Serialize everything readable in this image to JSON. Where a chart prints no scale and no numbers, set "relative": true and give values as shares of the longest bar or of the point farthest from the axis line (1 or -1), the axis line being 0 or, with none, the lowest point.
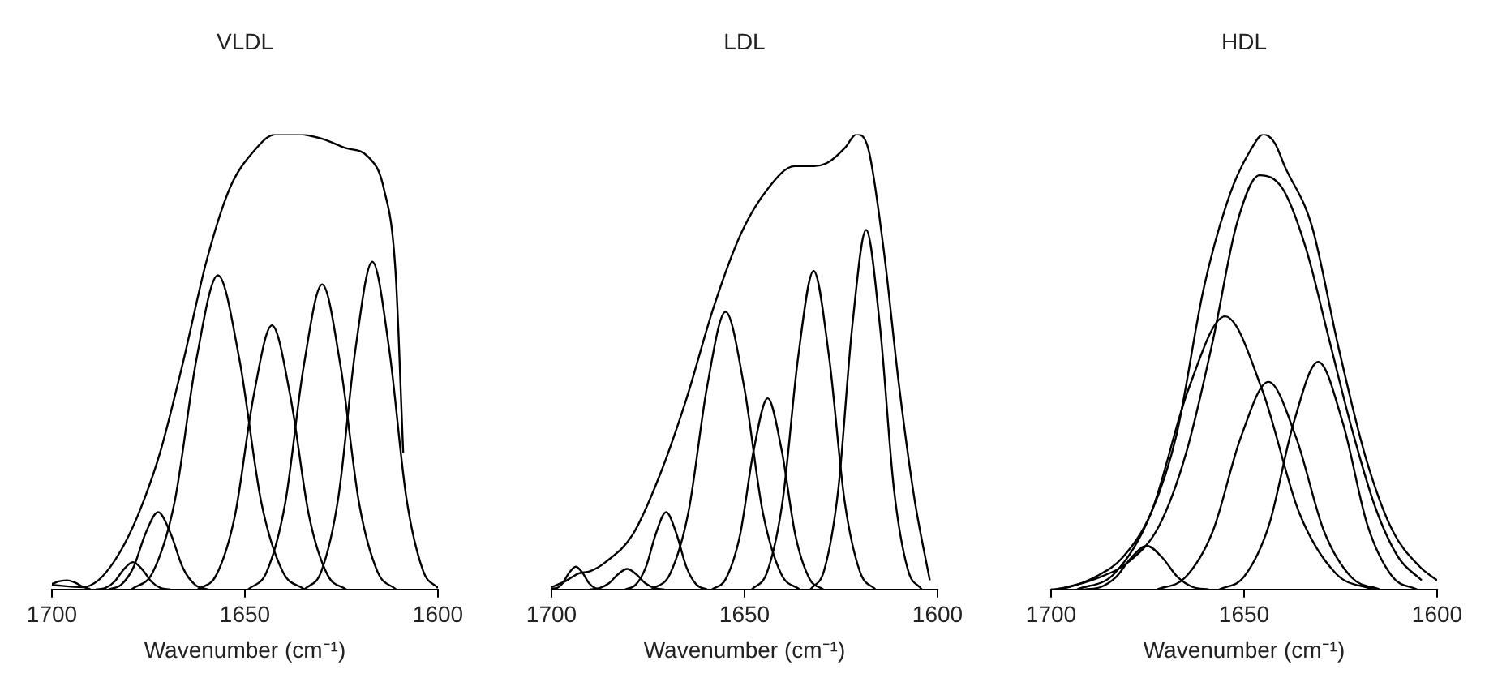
{
  "chart_data": [
    {
      "type": "line",
      "title": "VLDL",
      "xlabel": "Wavenumber (cm⁻¹)",
      "xlim": [
        1700,
        1600
      ],
      "xticks": [
        1700,
        1650,
        1600
      ],
      "relative": true,
      "tick_labels": "x",
      "marker": "none",
      "line_style": "solid",
      "series": [
        {
          "color": "#000000",
          "x": [
            1700,
            1692,
            1688,
            1684,
            1680,
            1676,
            1672,
            1666,
            1660,
            1654,
            1648,
            1642,
            1636,
            1630,
            1624,
            1618,
            1614,
            1611,
            1609
          ],
          "values": [
            0.01,
            0.005,
            0.02,
            0.06,
            0.12,
            0.2,
            0.3,
            0.5,
            0.72,
            0.88,
            0.96,
            1,
            1,
            0.99,
            0.97,
            0.95,
            0.88,
            0.7,
            0.3
          ]
        },
        {
          "color": "#000000",
          "x": [
            1700,
            1698,
            1696,
            1694,
            1692,
            1690
          ],
          "values": [
            0.012,
            0.018,
            0.02,
            0.015,
            0.006,
            0
          ]
        },
        {
          "color": "#000000",
          "x": [
            1688.6,
            1686.2,
            1683.8,
            1681.4,
            1679,
            1676.6,
            1674.2,
            1671.8,
            1669.4
          ],
          "values": [
            0,
            0.003,
            0.017,
            0.044,
            0.06,
            0.044,
            0.017,
            0.003,
            0
          ]
        },
        {
          "color": "#000000",
          "x": [
            1685.3,
            1682.1,
            1678.9,
            1675.7,
            1672.5,
            1669.3,
            1666.1,
            1662.9,
            1659.7
          ],
          "values": [
            0,
            0.01,
            0.048,
            0.124,
            0.17,
            0.124,
            0.048,
            0.01,
            0
          ]
        },
        {
          "color": "#000000",
          "x": [
            1679.4,
            1673.8,
            1668.2,
            1662.6,
            1657,
            1651.4,
            1645.8,
            1640.2,
            1634.6
          ],
          "values": [
            0,
            0.039,
            0.193,
            0.504,
            0.69,
            0.504,
            0.193,
            0.039,
            0
          ]
        },
        {
          "color": "#000000",
          "x": [
            1662.2,
            1657.4,
            1652.6,
            1647.8,
            1643,
            1638.2,
            1633.4,
            1628.6,
            1623.8
          ],
          "values": [
            0,
            0.032,
            0.162,
            0.423,
            0.58,
            0.423,
            0.162,
            0.032,
            0
          ]
        },
        {
          "color": "#000000",
          "x": [
            1649.2,
            1644.4,
            1639.6,
            1634.8,
            1630,
            1625.2,
            1620.4,
            1615.6,
            1610.8
          ],
          "values": [
            0,
            0.038,
            0.188,
            0.489,
            0.67,
            0.489,
            0.188,
            0.038,
            0
          ]
        },
        {
          "color": "#000000",
          "x": [
            1634.6,
            1630.2,
            1625.8,
            1621.4,
            1617,
            1612.6,
            1608.2,
            1603.8,
            1600
          ],
          "values": [
            0,
            0.04,
            0.202,
            0.526,
            0.72,
            0.526,
            0.202,
            0.04,
            0.003
          ]
        }
      ]
    },
    {
      "type": "line",
      "title": "LDL",
      "xlabel": "Wavenumber (cm⁻¹)",
      "xlim": [
        1700,
        1600
      ],
      "xticks": [
        1700,
        1650,
        1600
      ],
      "relative": true,
      "tick_labels": "x",
      "marker": "none",
      "line_style": "solid",
      "series": [
        {
          "color": "#000000",
          "x": [
            1700,
            1696,
            1693,
            1690,
            1686,
            1679,
            1672,
            1665,
            1658,
            1651,
            1644,
            1637,
            1632,
            1628,
            1624,
            1621,
            1618,
            1614,
            1610,
            1606,
            1602
          ],
          "values": [
            0.005,
            0.02,
            0.035,
            0.04,
            0.06,
            0.12,
            0.25,
            0.42,
            0.62,
            0.78,
            0.88,
            0.93,
            0.93,
            0.94,
            0.97,
            1,
            0.97,
            0.75,
            0.45,
            0.2,
            0.02
          ]
        },
        {
          "color": "#000000",
          "x": [
            1700,
            1698.7,
            1697.1,
            1695.4,
            1693.7,
            1692,
            1690.3,
            1688.7,
            1687
          ],
          "values": [
            0.002,
            0.003,
            0.014,
            0.037,
            0.05,
            0.037,
            0.014,
            0.003,
            0
          ]
        },
        {
          "color": "#000000",
          "x": [
            1690,
            1687.6,
            1685.2,
            1682.8,
            1680.4,
            1678,
            1675.6,
            1673.2,
            1670.8
          ],
          "values": [
            0,
            0.003,
            0.013,
            0.033,
            0.045,
            0.033,
            0.013,
            0.003,
            0
          ]
        },
        {
          "color": "#000000",
          "x": [
            1680.9,
            1678.2,
            1675.6,
            1672.9,
            1670.3,
            1667.7,
            1665,
            1662.4,
            1659.7
          ],
          "values": [
            0,
            0.01,
            0.048,
            0.124,
            0.17,
            0.124,
            0.048,
            0.01,
            0
          ]
        },
        {
          "color": "#000000",
          "x": [
            1674.1,
            1669.3,
            1664.5,
            1659.7,
            1654.9,
            1650.1,
            1645.3,
            1640.5,
            1635.7
          ],
          "values": [
            0,
            0.034,
            0.171,
            0.445,
            0.61,
            0.445,
            0.171,
            0.034,
            0
          ]
        },
        {
          "color": "#000000",
          "x": [
            1658.4,
            1654.8,
            1651.2,
            1647.6,
            1644,
            1640.4,
            1636.8,
            1633.2,
            1629.6
          ],
          "values": [
            0,
            0.024,
            0.118,
            0.307,
            0.42,
            0.307,
            0.118,
            0.024,
            0
          ]
        },
        {
          "color": "#000000",
          "x": [
            1648.1,
            1644.1,
            1640.1,
            1636.1,
            1632.1,
            1628.1,
            1624.1,
            1620.1,
            1616.1
          ],
          "values": [
            0,
            0.039,
            0.196,
            0.511,
            0.7,
            0.511,
            0.196,
            0.039,
            0
          ]
        },
        {
          "color": "#000000",
          "x": [
            1632.9,
            1629.3,
            1625.7,
            1622.1,
            1618.5,
            1614.9,
            1611.3,
            1607.7,
            1604.1
          ],
          "values": [
            0,
            0.044,
            0.221,
            0.577,
            0.79,
            0.577,
            0.221,
            0.044,
            0
          ]
        }
      ]
    },
    {
      "type": "line",
      "title": "HDL",
      "xlabel": "Wavenumber (cm⁻¹)",
      "xlim": [
        1700,
        1600
      ],
      "xticks": [
        1700,
        1650,
        1600
      ],
      "relative": true,
      "tick_labels": "x",
      "marker": "none",
      "line_style": "solid",
      "series": [
        {
          "color": "#000000",
          "x": [
            1700,
            1695.5,
            1688,
            1681.5,
            1674,
            1667.5,
            1660.5,
            1653.6,
            1648,
            1645,
            1642,
            1639.5,
            1632.5,
            1625.5,
            1618.5,
            1611.6,
            1604.5,
            1600
          ],
          "values": [
            0,
            0.005,
            0.03,
            0.07,
            0.17,
            0.34,
            0.66,
            0.87,
            0.97,
            1,
            0.98,
            0.93,
            0.8,
            0.53,
            0.29,
            0.13,
            0.05,
            0.02
          ]
        },
        {
          "color": "#000000",
          "x": [
            1698,
            1688,
            1680,
            1672,
            1665,
            1658,
            1652,
            1646,
            1640,
            1634,
            1628,
            1622,
            1616,
            1610,
            1604
          ],
          "values": [
            0,
            0.025,
            0.06,
            0.14,
            0.3,
            0.55,
            0.8,
            0.91,
            0.88,
            0.75,
            0.55,
            0.35,
            0.18,
            0.07,
            0.02
          ]
        },
        {
          "color": "#000000",
          "x": [
            1691.2,
            1687.2,
            1683.2,
            1679.2,
            1675.2,
            1671.2,
            1667.2,
            1663.2,
            1659.2
          ],
          "values": [
            0,
            0.005,
            0.027,
            0.07,
            0.096,
            0.07,
            0.027,
            0.005,
            0
          ]
        },
        {
          "color": "#000000",
          "x": [
            1693.3,
            1683.7,
            1674.1,
            1664.5,
            1654.9,
            1645.3,
            1635.7,
            1626.1,
            1616.5
          ],
          "values": [
            0,
            0.034,
            0.168,
            0.438,
            0.6,
            0.438,
            0.168,
            0.034,
            0
          ]
        },
        {
          "color": "#000000",
          "x": [
            1672.5,
            1665.3,
            1658.1,
            1650.9,
            1643.7,
            1636.5,
            1629.3,
            1622.1,
            1614.9
          ],
          "values": [
            0,
            0.026,
            0.128,
            0.333,
            0.456,
            0.333,
            0.128,
            0.026,
            0
          ]
        },
        {
          "color": "#000000",
          "x": [
            1656.4,
            1650,
            1643.6,
            1637.2,
            1630.8,
            1624.4,
            1618,
            1611.6,
            1605.2
          ],
          "values": [
            0,
            0.028,
            0.14,
            0.365,
            0.5,
            0.365,
            0.14,
            0.028,
            0
          ]
        }
      ]
    }
  ]
}
